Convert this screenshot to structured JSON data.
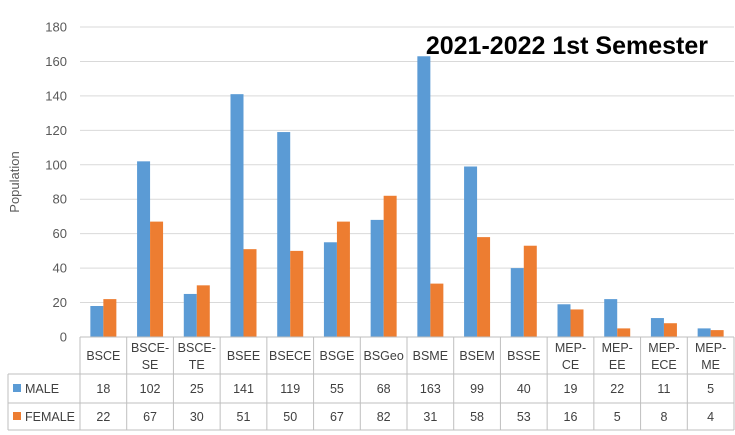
{
  "chart_data": {
    "type": "bar",
    "title": "2021-2022 1st Semester",
    "ylabel": "Population",
    "xlabel": "",
    "ylim": [
      0,
      180
    ],
    "yticks": [
      0,
      20,
      40,
      60,
      80,
      100,
      120,
      140,
      160,
      180
    ],
    "grid": true,
    "legend": "bottom-left data table",
    "categories": [
      "BSCE",
      "BSCE-SE",
      "BSCE-TE",
      "BSEE",
      "BSECE",
      "BSGE",
      "BSGeo",
      "BSME",
      "BSEM",
      "BSSE",
      "MEP-CE",
      "MEP-EE",
      "MEP-ECE",
      "MEP-ME"
    ],
    "series": [
      {
        "name": "MALE",
        "color": "#5b9bd5",
        "values": [
          18,
          102,
          25,
          141,
          119,
          55,
          68,
          163,
          99,
          40,
          19,
          22,
          11,
          5
        ]
      },
      {
        "name": "FEMALE",
        "color": "#ed7d31",
        "values": [
          22,
          67,
          30,
          51,
          50,
          67,
          82,
          31,
          58,
          53,
          16,
          5,
          8,
          4
        ]
      }
    ]
  }
}
